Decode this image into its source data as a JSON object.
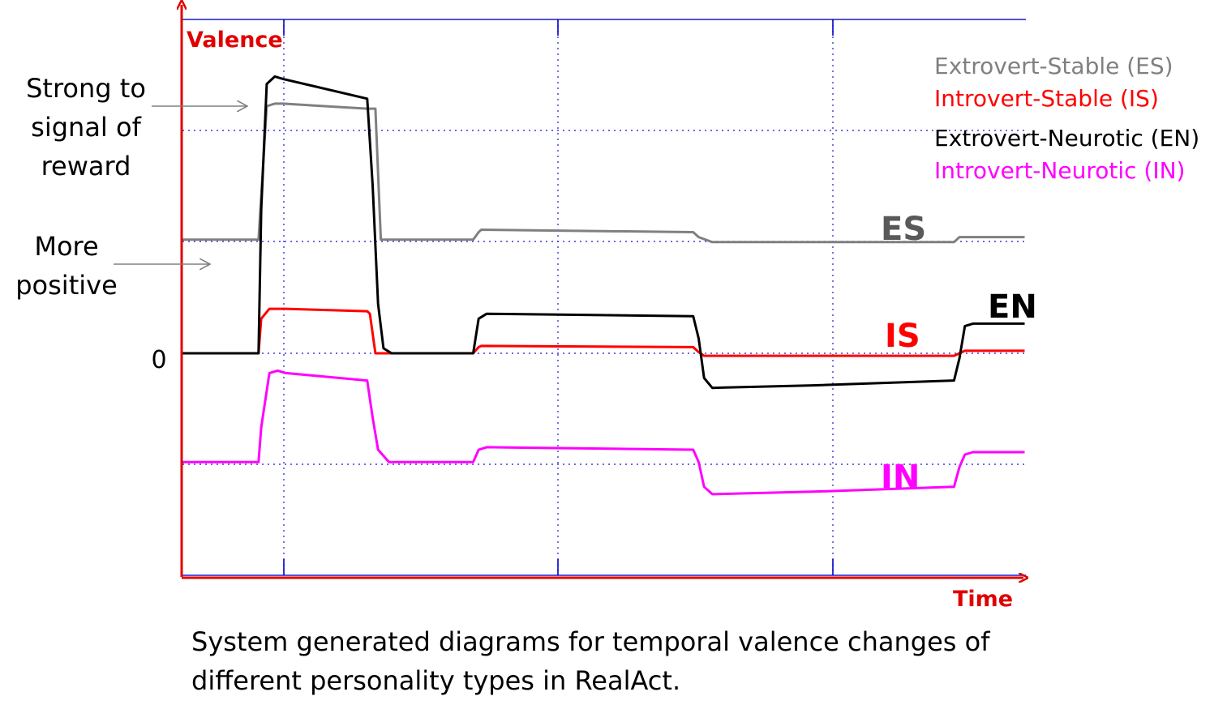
{
  "chart_data": {
    "type": "line",
    "xlabel": "Time",
    "ylabel": "Valence",
    "y_tick_labels": [
      "0"
    ],
    "grid": true,
    "legend_position": "top-right",
    "colors": {
      "ES": "#808080",
      "IS": "#ff0000",
      "EN": "#000000",
      "IN": "#ff00ff",
      "axis": "#ff0000",
      "frame": "#0000cc",
      "grid": "#3a3adc"
    },
    "series": [
      {
        "name": "Extrovert-Stable (ES)",
        "tag": "ES",
        "points": [
          [
            0,
            4.6
          ],
          [
            28,
            4.6
          ],
          [
            31,
            10
          ],
          [
            34,
            10.1
          ],
          [
            37,
            10.1
          ],
          [
            68,
            9.9
          ],
          [
            71,
            9.9
          ],
          [
            73,
            4.6
          ],
          [
            107,
            4.6
          ],
          [
            109,
            4.9
          ],
          [
            110,
            5.0
          ],
          [
            188,
            4.9
          ],
          [
            190,
            4.7
          ],
          [
            195,
            4.5
          ],
          [
            232,
            4.5
          ],
          [
            272,
            4.5
          ],
          [
            284,
            4.5
          ],
          [
            286,
            4.7
          ],
          [
            295,
            4.7
          ],
          [
            310,
            4.7
          ]
        ]
      },
      {
        "name": "Introvert-Stable (IS)",
        "tag": "IS",
        "points": [
          [
            0,
            0
          ],
          [
            28,
            0
          ],
          [
            29,
            1.4
          ],
          [
            32,
            1.8
          ],
          [
            38,
            1.8
          ],
          [
            68,
            1.7
          ],
          [
            69,
            1.6
          ],
          [
            71,
            0
          ],
          [
            107,
            0
          ],
          [
            109,
            0.25
          ],
          [
            110,
            0.3
          ],
          [
            188,
            0.25
          ],
          [
            190,
            0.05
          ],
          [
            192,
            -0.1
          ],
          [
            284,
            -0.1
          ],
          [
            286,
            0
          ],
          [
            288,
            0.1
          ],
          [
            310,
            0.1
          ]
        ]
      },
      {
        "name": "Extrovert-Neurotic (EN)",
        "tag": "EN",
        "points": [
          [
            0,
            0
          ],
          [
            28,
            0
          ],
          [
            29,
            5.8
          ],
          [
            31,
            10.9
          ],
          [
            34,
            11.2
          ],
          [
            37,
            11.1
          ],
          [
            68,
            10.3
          ],
          [
            70,
            6.8
          ],
          [
            72,
            2.0
          ],
          [
            74,
            0.2
          ],
          [
            77,
            0
          ],
          [
            107,
            0
          ],
          [
            109,
            1.4
          ],
          [
            112,
            1.6
          ],
          [
            188,
            1.5
          ],
          [
            190,
            0.6
          ],
          [
            192,
            -1.0
          ],
          [
            195,
            -1.4
          ],
          [
            232,
            -1.3
          ],
          [
            284,
            -1.1
          ],
          [
            286,
            -0.2
          ],
          [
            288,
            1.1
          ],
          [
            291,
            1.2
          ],
          [
            310,
            1.2
          ]
        ]
      },
      {
        "name": "Introvert-Neurotic (IN)",
        "tag": "IN",
        "points": [
          [
            0,
            -4.4
          ],
          [
            28,
            -4.4
          ],
          [
            29,
            -3.0
          ],
          [
            32,
            -0.8
          ],
          [
            35,
            -0.7
          ],
          [
            38,
            -0.8
          ],
          [
            68,
            -1.1
          ],
          [
            70,
            -2.6
          ],
          [
            72,
            -3.9
          ],
          [
            76,
            -4.4
          ],
          [
            107,
            -4.4
          ],
          [
            109,
            -3.9
          ],
          [
            112,
            -3.8
          ],
          [
            188,
            -3.9
          ],
          [
            190,
            -4.4
          ],
          [
            192,
            -5.4
          ],
          [
            195,
            -5.7
          ],
          [
            232,
            -5.6
          ],
          [
            284,
            -5.4
          ],
          [
            286,
            -4.6
          ],
          [
            288,
            -4.1
          ],
          [
            291,
            -4.0
          ],
          [
            310,
            -4.0
          ]
        ]
      }
    ],
    "annotations": [
      {
        "lines": [
          "Strong to",
          "signal of",
          "reward"
        ]
      },
      {
        "lines": [
          "More",
          "positive"
        ]
      }
    ]
  },
  "caption": "System generated diagrams for temporal valence changes of different personality types in RealAct."
}
